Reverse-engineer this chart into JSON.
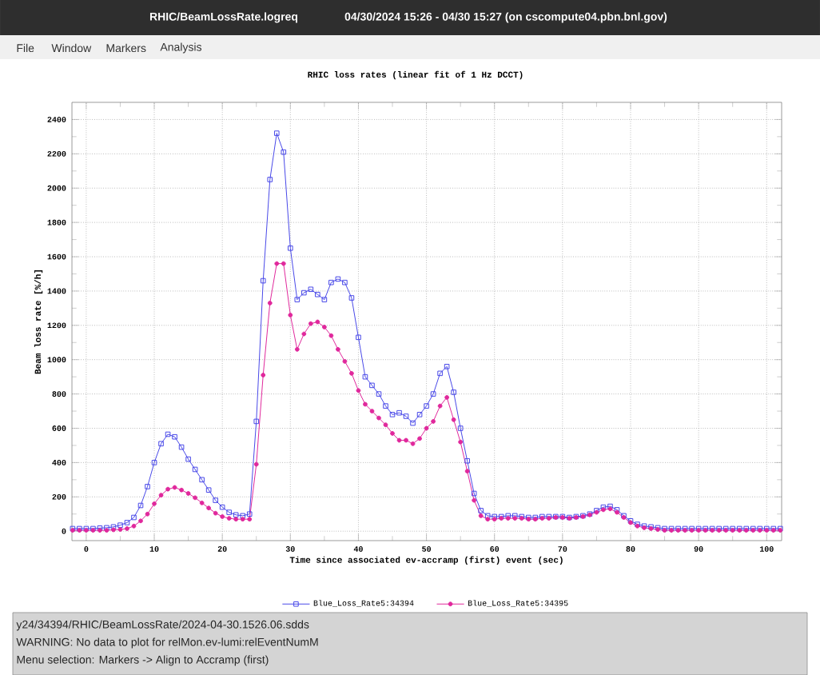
{
  "chart_data": {
    "type": "line",
    "title": "RHIC loss rates (linear fit of 1 Hz DCCT)",
    "xlabel": "Time since associated ev-accramp (first) event (sec)",
    "ylabel": "Beam loss rate [%/h]",
    "x": [
      -2,
      -1,
      0,
      1,
      2,
      3,
      4,
      5,
      6,
      7,
      8,
      9,
      10,
      11,
      12,
      13,
      14,
      15,
      16,
      17,
      18,
      19,
      20,
      21,
      22,
      23,
      24,
      25,
      26,
      27,
      28,
      29,
      30,
      31,
      32,
      33,
      34,
      35,
      36,
      37,
      38,
      39,
      40,
      41,
      42,
      43,
      44,
      45,
      46,
      47,
      48,
      49,
      50,
      51,
      52,
      53,
      54,
      55,
      56,
      57,
      58,
      59,
      60,
      61,
      62,
      63,
      64,
      65,
      66,
      67,
      68,
      69,
      70,
      71,
      72,
      73,
      74,
      75,
      76,
      77,
      78,
      79,
      80,
      81,
      82,
      83,
      84,
      85,
      86,
      87,
      88,
      89,
      90,
      91,
      92,
      93,
      94,
      95,
      96,
      97,
      98,
      99,
      100,
      101,
      102
    ],
    "series": [
      {
        "name": "Blue_Loss_Rate5:34394",
        "color": "#4848e8",
        "marker": "square",
        "values": [
          15,
          15,
          15,
          15,
          18,
          20,
          25,
          35,
          50,
          80,
          150,
          260,
          400,
          510,
          565,
          550,
          490,
          420,
          360,
          300,
          240,
          180,
          140,
          110,
          95,
          90,
          100,
          640,
          1460,
          2050,
          2320,
          2210,
          1650,
          1350,
          1390,
          1410,
          1380,
          1350,
          1450,
          1470,
          1450,
          1360,
          1130,
          900,
          850,
          800,
          730,
          680,
          690,
          670,
          630,
          680,
          730,
          800,
          920,
          960,
          810,
          600,
          410,
          220,
          120,
          90,
          85,
          85,
          90,
          90,
          85,
          80,
          80,
          85,
          85,
          85,
          85,
          80,
          85,
          90,
          100,
          120,
          140,
          145,
          125,
          90,
          60,
          40,
          30,
          25,
          20,
          15,
          15,
          15,
          15,
          15,
          15,
          15,
          15,
          15,
          15,
          15,
          15,
          15,
          15,
          15,
          15,
          15,
          15
        ]
      },
      {
        "name": "Blue_Loss_Rate5:34395",
        "color": "#e0289c",
        "marker": "circle",
        "values": [
          5,
          5,
          5,
          5,
          5,
          5,
          8,
          10,
          15,
          30,
          60,
          100,
          160,
          210,
          245,
          255,
          240,
          220,
          195,
          165,
          135,
          105,
          85,
          75,
          70,
          70,
          70,
          390,
          910,
          1330,
          1560,
          1560,
          1260,
          1060,
          1150,
          1210,
          1220,
          1190,
          1140,
          1060,
          990,
          920,
          820,
          740,
          700,
          660,
          620,
          570,
          530,
          530,
          510,
          540,
          600,
          640,
          730,
          780,
          650,
          520,
          350,
          180,
          90,
          70,
          70,
          75,
          75,
          75,
          75,
          70,
          70,
          75,
          75,
          80,
          80,
          75,
          80,
          85,
          95,
          110,
          125,
          130,
          110,
          80,
          50,
          30,
          20,
          15,
          10,
          5,
          5,
          5,
          5,
          5,
          5,
          5,
          5,
          5,
          5,
          5,
          5,
          5,
          5,
          5,
          5,
          5,
          5
        ]
      }
    ],
    "xlim": [
      -2.1,
      102.2
    ],
    "ylim": [
      -55,
      2500
    ],
    "xticks": [
      0,
      10,
      20,
      30,
      40,
      50,
      60,
      70,
      80,
      90,
      100
    ],
    "yticks": [
      0,
      200,
      400,
      600,
      800,
      1000,
      1200,
      1400,
      1600,
      1800,
      2000,
      2200,
      2400
    ],
    "grid": true,
    "legend": "bottom",
    "line_style": "solid",
    "annotations": [
      "RHIC/BeamLossRate.logreq",
      "04/30/2024 15:26 - 04/30 15:27 (on cscompute04.pbn.bnl.gov)",
      "File",
      "Window",
      "Markers",
      "Analysis",
      "y24/34394/RHIC/BeamLossRate/2024-04-30.1526.06.sdds",
      "WARNING: No data to plot for relMon.ev-lumi:relEventNumM",
      "Menu selection: Markers -> Align to Accramp (first)"
    ]
  }
}
